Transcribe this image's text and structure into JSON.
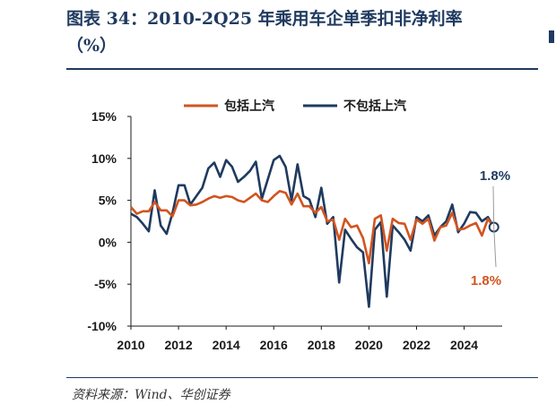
{
  "title": {
    "line1": "图表 34：2010-2Q25 年乘用车企单季扣非净利率",
    "line2": "（%）"
  },
  "source": "资料来源：Wind、华创证券",
  "chart_data": {
    "type": "line",
    "title": "图表 34：2010-2Q25 年乘用车企单季扣非净利率（%）",
    "xlabel": "",
    "ylabel": "",
    "xlim": [
      2010,
      2025.6
    ],
    "ylim": [
      -10,
      15
    ],
    "yticks": [
      -10,
      -5,
      0,
      5,
      10,
      15
    ],
    "ytick_labels": [
      "-10%",
      "-5%",
      "0%",
      "5%",
      "10%",
      "15%"
    ],
    "xticks": [
      2010,
      2012,
      2014,
      2016,
      2018,
      2020,
      2022,
      2024
    ],
    "xtick_labels": [
      "2010",
      "2012",
      "2014",
      "2016",
      "2018",
      "2020",
      "2022",
      "2024"
    ],
    "legend_position": "top",
    "grid": false,
    "series": [
      {
        "name": "包括上汽",
        "color": "#d2541f",
        "points": [
          [
            2010.0,
            4.2
          ],
          [
            2010.25,
            3.4
          ],
          [
            2010.5,
            3.7
          ],
          [
            2010.75,
            3.7
          ],
          [
            2011.0,
            4.8
          ],
          [
            2011.25,
            3.8
          ],
          [
            2011.5,
            3.8
          ],
          [
            2011.75,
            3.1
          ],
          [
            2012.0,
            5.0
          ],
          [
            2012.25,
            5.0
          ],
          [
            2012.5,
            4.4
          ],
          [
            2012.75,
            4.5
          ],
          [
            2013.0,
            4.8
          ],
          [
            2013.25,
            5.2
          ],
          [
            2013.5,
            5.5
          ],
          [
            2013.75,
            5.3
          ],
          [
            2014.0,
            5.5
          ],
          [
            2014.25,
            5.4
          ],
          [
            2014.5,
            5.0
          ],
          [
            2014.75,
            4.8
          ],
          [
            2015.0,
            5.3
          ],
          [
            2015.25,
            5.8
          ],
          [
            2015.5,
            5.0
          ],
          [
            2015.75,
            4.8
          ],
          [
            2016.0,
            5.5
          ],
          [
            2016.25,
            6.1
          ],
          [
            2016.5,
            5.9
          ],
          [
            2016.75,
            4.5
          ],
          [
            2017.0,
            5.8
          ],
          [
            2017.25,
            4.3
          ],
          [
            2017.5,
            4.3
          ],
          [
            2017.75,
            3.5
          ],
          [
            2018.0,
            4.2
          ],
          [
            2018.25,
            2.5
          ],
          [
            2018.5,
            2.7
          ],
          [
            2018.75,
            0.3
          ],
          [
            2019.0,
            2.8
          ],
          [
            2019.25,
            1.8
          ],
          [
            2019.5,
            2.0
          ],
          [
            2019.75,
            0.5
          ],
          [
            2020.0,
            -2.5
          ],
          [
            2020.25,
            2.8
          ],
          [
            2020.5,
            3.2
          ],
          [
            2020.75,
            -1.0
          ],
          [
            2021.0,
            2.8
          ],
          [
            2021.25,
            2.3
          ],
          [
            2021.5,
            2.2
          ],
          [
            2021.75,
            0.3
          ],
          [
            2022.0,
            2.7
          ],
          [
            2022.25,
            2.2
          ],
          [
            2022.5,
            2.8
          ],
          [
            2022.75,
            0.2
          ],
          [
            2023.0,
            1.8
          ],
          [
            2023.25,
            2.0
          ],
          [
            2023.5,
            3.5
          ],
          [
            2023.75,
            1.5
          ],
          [
            2024.0,
            1.6
          ],
          [
            2024.25,
            2.0
          ],
          [
            2024.5,
            2.3
          ],
          [
            2024.75,
            0.8
          ],
          [
            2025.0,
            2.8
          ],
          [
            2025.25,
            1.8
          ]
        ]
      },
      {
        "name": "不包括上汽",
        "color": "#1f3a5f",
        "points": [
          [
            2010.0,
            3.4
          ],
          [
            2010.25,
            3.0
          ],
          [
            2010.5,
            2.2
          ],
          [
            2010.75,
            1.3
          ],
          [
            2011.0,
            6.2
          ],
          [
            2011.25,
            2.0
          ],
          [
            2011.5,
            1.0
          ],
          [
            2011.75,
            3.5
          ],
          [
            2012.0,
            6.8
          ],
          [
            2012.25,
            6.8
          ],
          [
            2012.5,
            4.5
          ],
          [
            2012.75,
            5.5
          ],
          [
            2013.0,
            6.5
          ],
          [
            2013.25,
            8.8
          ],
          [
            2013.5,
            9.5
          ],
          [
            2013.75,
            7.8
          ],
          [
            2014.0,
            9.8
          ],
          [
            2014.25,
            9.0
          ],
          [
            2014.5,
            7.2
          ],
          [
            2014.75,
            7.8
          ],
          [
            2015.0,
            8.5
          ],
          [
            2015.25,
            9.6
          ],
          [
            2015.5,
            5.2
          ],
          [
            2015.75,
            7.5
          ],
          [
            2016.0,
            9.8
          ],
          [
            2016.25,
            10.3
          ],
          [
            2016.5,
            9.0
          ],
          [
            2016.75,
            5.0
          ],
          [
            2017.0,
            9.3
          ],
          [
            2017.25,
            5.5
          ],
          [
            2017.5,
            5.1
          ],
          [
            2017.75,
            3.0
          ],
          [
            2018.0,
            6.5
          ],
          [
            2018.25,
            2.2
          ],
          [
            2018.5,
            3.0
          ],
          [
            2018.75,
            -4.8
          ],
          [
            2019.0,
            1.5
          ],
          [
            2019.25,
            0.4
          ],
          [
            2019.5,
            -0.6
          ],
          [
            2019.75,
            -1.2
          ],
          [
            2020.0,
            -7.7
          ],
          [
            2020.25,
            1.5
          ],
          [
            2020.5,
            2.4
          ],
          [
            2020.75,
            -6.5
          ],
          [
            2021.0,
            2.0
          ],
          [
            2021.25,
            1.2
          ],
          [
            2021.5,
            0.3
          ],
          [
            2021.75,
            -1.0
          ],
          [
            2022.0,
            3.0
          ],
          [
            2022.25,
            2.5
          ],
          [
            2022.5,
            3.2
          ],
          [
            2022.75,
            0.8
          ],
          [
            2023.0,
            1.8
          ],
          [
            2023.25,
            2.5
          ],
          [
            2023.5,
            4.5
          ],
          [
            2023.75,
            1.2
          ],
          [
            2024.0,
            2.2
          ],
          [
            2024.25,
            3.6
          ],
          [
            2024.5,
            3.5
          ],
          [
            2024.75,
            2.5
          ],
          [
            2025.0,
            3.0
          ],
          [
            2025.25,
            1.8
          ]
        ]
      }
    ],
    "annotations": [
      {
        "text": "1.8%",
        "series": "不包括上汽",
        "color": "#1f3a5f",
        "position": "above"
      },
      {
        "text": "1.8%",
        "series": "包括上汽",
        "color": "#d2541f",
        "position": "below"
      }
    ]
  }
}
